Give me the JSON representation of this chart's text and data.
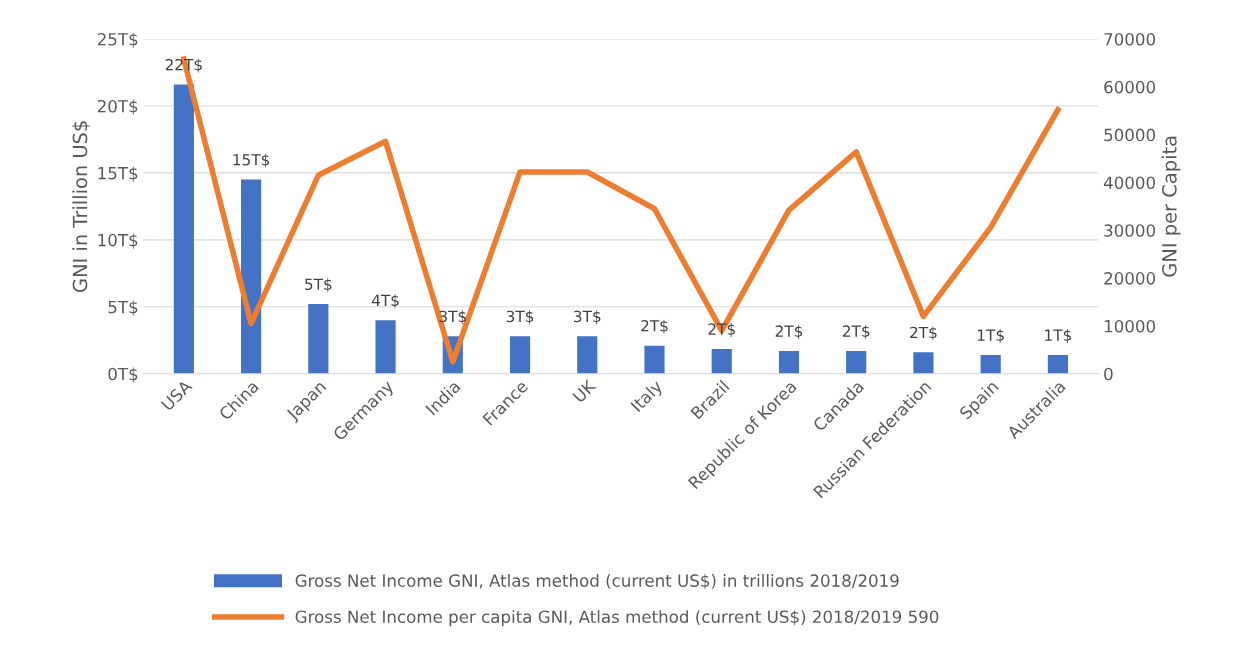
{
  "chart_data": {
    "type": "bar",
    "categories": [
      "USA",
      "China",
      "Japan",
      "Germany",
      "India",
      "France",
      "UK",
      "Italy",
      "Brazil",
      "Republic of Korea",
      "Canada",
      "Russian Federation",
      "Spain",
      "Australia"
    ],
    "ylabel": "GNI in Trillion US$",
    "y2label": "GNI per Capita",
    "ylim": [
      0,
      25
    ],
    "yticks": [
      {
        "value": 0,
        "label": "0T$"
      },
      {
        "value": 5,
        "label": "5T$"
      },
      {
        "value": 10,
        "label": "10T$"
      },
      {
        "value": 15,
        "label": "15T$"
      },
      {
        "value": 20,
        "label": "20T$"
      },
      {
        "value": 25,
        "label": "25T$"
      }
    ],
    "y2lim": [
      0,
      70000
    ],
    "y2ticks": [
      0,
      10000,
      20000,
      30000,
      40000,
      50000,
      60000,
      70000
    ],
    "grid": "y",
    "legend": "bottom",
    "series": [
      {
        "name": "Gross Net Income GNI, Atlas method (current US$) in trillions 2018/2019",
        "color": "#4472c4",
        "values": [
          21.6,
          14.5,
          5.2,
          4.0,
          2.8,
          2.8,
          2.8,
          2.1,
          1.85,
          1.7,
          1.7,
          1.6,
          1.4,
          1.4
        ],
        "value_labels": [
          "22T$",
          "15T$",
          "5T$",
          "4T$",
          "3T$",
          "3T$",
          "3T$",
          "2T$",
          "2T$",
          "2T$",
          "2T$",
          "2T$",
          "1T$",
          "1T$"
        ]
      },
      {
        "name": "Gross Net Income per capita GNI, Atlas method (current US$) 2018/2019 590",
        "type": "line",
        "axis": "y2",
        "color": "#ed7d31",
        "marker": "none",
        "line_style": "solid",
        "values": [
          65800,
          10500,
          41500,
          48600,
          2500,
          42200,
          42200,
          34500,
          9000,
          34200,
          46400,
          12000,
          30600,
          55200
        ]
      }
    ]
  }
}
